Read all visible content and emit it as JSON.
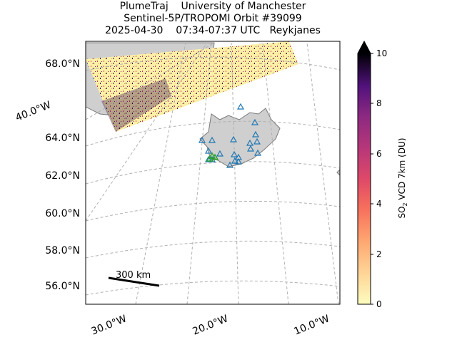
{
  "title": {
    "line1": "PlumeTraj    University of Manchester",
    "line2": "Sentinel-5P/TROPOMI Orbit #39099",
    "line3": "2025-04-30    07:34-07:37 UTC   Reykjanes"
  },
  "map": {
    "lat_labels": [
      "68.0°N",
      "64.0°N",
      "62.0°N",
      "60.0°N",
      "58.0°N",
      "56.0°N"
    ],
    "lon_labels": [
      "30.0°W",
      "20.0°W",
      "10.0°W"
    ],
    "left_lon_label": "40.0°W",
    "scale_bar_label": "300 km",
    "gridlines": true,
    "land_color": "#cfcfcf",
    "volcano_marker_color": "#1f77b4",
    "active_volcano_marker_color": "#2ca02c"
  },
  "colorbar": {
    "label_main": "SO",
    "label_sub": "2",
    "label_rest": " VCD 7km (DU)",
    "ticks": [
      "0",
      "2",
      "4",
      "6",
      "8",
      "10"
    ],
    "min": 0,
    "max": 10,
    "extend": "max",
    "colormap": "magma_r"
  }
}
